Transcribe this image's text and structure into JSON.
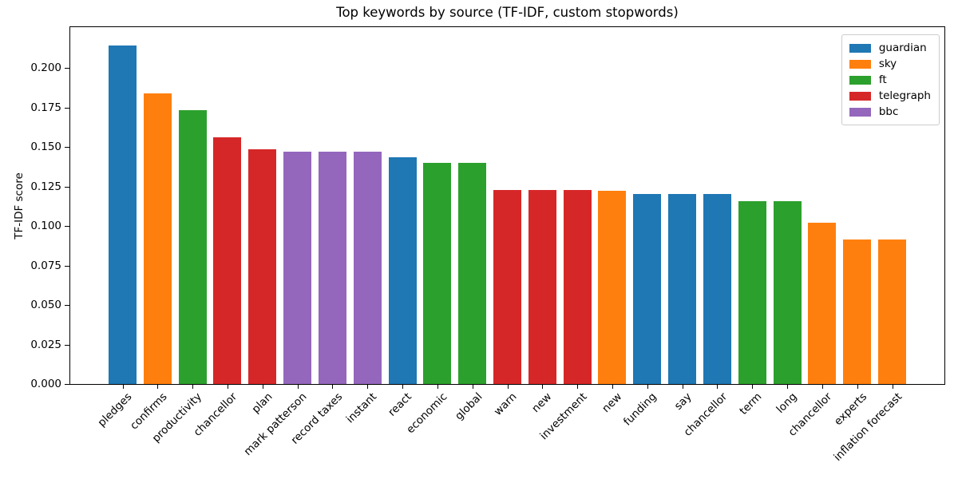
{
  "chart_data": {
    "type": "bar",
    "title": "Top keywords by source (TF-IDF, custom stopwords)",
    "xlabel": "",
    "ylabel": "TF-IDF score",
    "ylim": [
      0,
      0.226
    ],
    "grid": false,
    "legend_position": "upper right",
    "ytick_labels": [
      "0.000",
      "0.025",
      "0.050",
      "0.075",
      "0.100",
      "0.125",
      "0.150",
      "0.175",
      "0.200"
    ],
    "categories": [
      "pledges",
      "confirms",
      "productivity",
      "chancellor",
      "plan",
      "mark patterson",
      "record taxes",
      "instant",
      "react",
      "economic",
      "global",
      "warn",
      "new",
      "investment",
      "new",
      "funding",
      "say",
      "chancellor",
      "term",
      "long",
      "chancellor",
      "experts",
      "inflation forecast"
    ],
    "values": [
      0.2145,
      0.184,
      0.1735,
      0.156,
      0.1485,
      0.147,
      0.147,
      0.147,
      0.1435,
      0.14,
      0.14,
      0.123,
      0.123,
      0.123,
      0.1225,
      0.1205,
      0.1205,
      0.1205,
      0.116,
      0.116,
      0.1023,
      0.0915,
      0.0915
    ],
    "bar_sources": [
      "guardian",
      "sky",
      "ft",
      "telegraph",
      "telegraph",
      "bbc",
      "bbc",
      "bbc",
      "guardian",
      "ft",
      "ft",
      "telegraph",
      "telegraph",
      "telegraph",
      "sky",
      "guardian",
      "guardian",
      "guardian",
      "ft",
      "ft",
      "sky",
      "sky",
      "sky"
    ],
    "legend": [
      {
        "label": "guardian",
        "color": "#1f77b4"
      },
      {
        "label": "sky",
        "color": "#ff7f0e"
      },
      {
        "label": "ft",
        "color": "#2ca02c"
      },
      {
        "label": "telegraph",
        "color": "#d62728"
      },
      {
        "label": "bbc",
        "color": "#9467bd"
      }
    ]
  }
}
